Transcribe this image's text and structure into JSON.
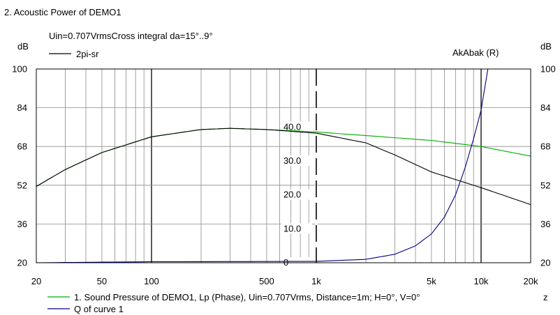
{
  "window": {
    "title": "2. Acoustic Power of DEMO1"
  },
  "chart_data": {
    "type": "line",
    "title": "2. Acoustic Power of DEMO1",
    "subtitle": "Uin=0.707VrmsCross integral da=15°..9°",
    "legend_top": {
      "label": "2pi-sr",
      "color": "#000000"
    },
    "right_title": "AkAbak (R)",
    "ylabel_left": "dB",
    "ylabel_right": "dB",
    "x_scale": "log",
    "xlim": [
      20,
      20000
    ],
    "x_ticks": [
      {
        "v": 20,
        "label": "20"
      },
      {
        "v": 50,
        "label": "50"
      },
      {
        "v": 100,
        "label": "100"
      },
      {
        "v": 500,
        "label": "500"
      },
      {
        "v": 1000,
        "label": "1k"
      },
      {
        "v": 5000,
        "label": "5k"
      },
      {
        "v": 10000,
        "label": "10k"
      },
      {
        "v": 20000,
        "label": "20k"
      }
    ],
    "ylim": [
      20,
      100
    ],
    "y_ticks": [
      {
        "v": 100,
        "label": "100"
      },
      {
        "v": 84,
        "label": "84"
      },
      {
        "v": 68,
        "label": "68"
      },
      {
        "v": 52,
        "label": "52"
      },
      {
        "v": 36,
        "label": "36"
      },
      {
        "v": 20,
        "label": "20"
      }
    ],
    "q_axis": {
      "ylim": [
        0,
        57.1
      ],
      "ticks": [
        {
          "v": 40,
          "label": "40.0"
        },
        {
          "v": 30,
          "label": "30.0"
        },
        {
          "v": 20,
          "label": "20.0"
        },
        {
          "v": 10,
          "label": "10.0"
        },
        {
          "v": 0,
          "label": "0"
        }
      ]
    },
    "grid": true,
    "series": [
      {
        "name": "1. Sound Pressure of DEMO1, Lp (Phase), Uin=0.707Vrms, Distance=1m; H=0°, V=0°",
        "color": "#00aa00",
        "axis": "left",
        "x": [
          20,
          30,
          50,
          100,
          200,
          300,
          500,
          1000,
          2000,
          5000,
          10000,
          20000
        ],
        "y": [
          51.5,
          58.5,
          65.5,
          72,
          75,
          75.5,
          75,
          74,
          72.5,
          70.5,
          68,
          64
        ]
      },
      {
        "name": "",
        "color": "#000000",
        "axis": "left",
        "x": [
          20,
          30,
          50,
          100,
          200,
          300,
          500,
          1000,
          2000,
          3000,
          5000,
          10000,
          20000
        ],
        "y": [
          51.5,
          58.5,
          65.5,
          72,
          75,
          75.5,
          75,
          73.5,
          69.5,
          64.5,
          57.5,
          51,
          44
        ]
      },
      {
        "name": "Q of curve 1",
        "color": "#000080",
        "axis": "q",
        "x": [
          20,
          100,
          1000,
          2000,
          3000,
          4000,
          5000,
          6000,
          7000,
          8000,
          9000,
          10000,
          11000,
          20000
        ],
        "y": [
          0,
          0.3,
          0.4,
          1,
          2.5,
          5,
          8.5,
          13.5,
          20,
          28,
          36.5,
          45,
          57.1,
          57.1
        ]
      }
    ],
    "legend_bottom": [
      {
        "label": "1. Sound Pressure of DEMO1, Lp (Phase), Uin=0.707Vrms, Distance=1m; H=0°, V=0°",
        "color": "#00aa00",
        "suffix": "z"
      },
      {
        "label": "Q of curve 1",
        "color": "#000080"
      }
    ]
  }
}
